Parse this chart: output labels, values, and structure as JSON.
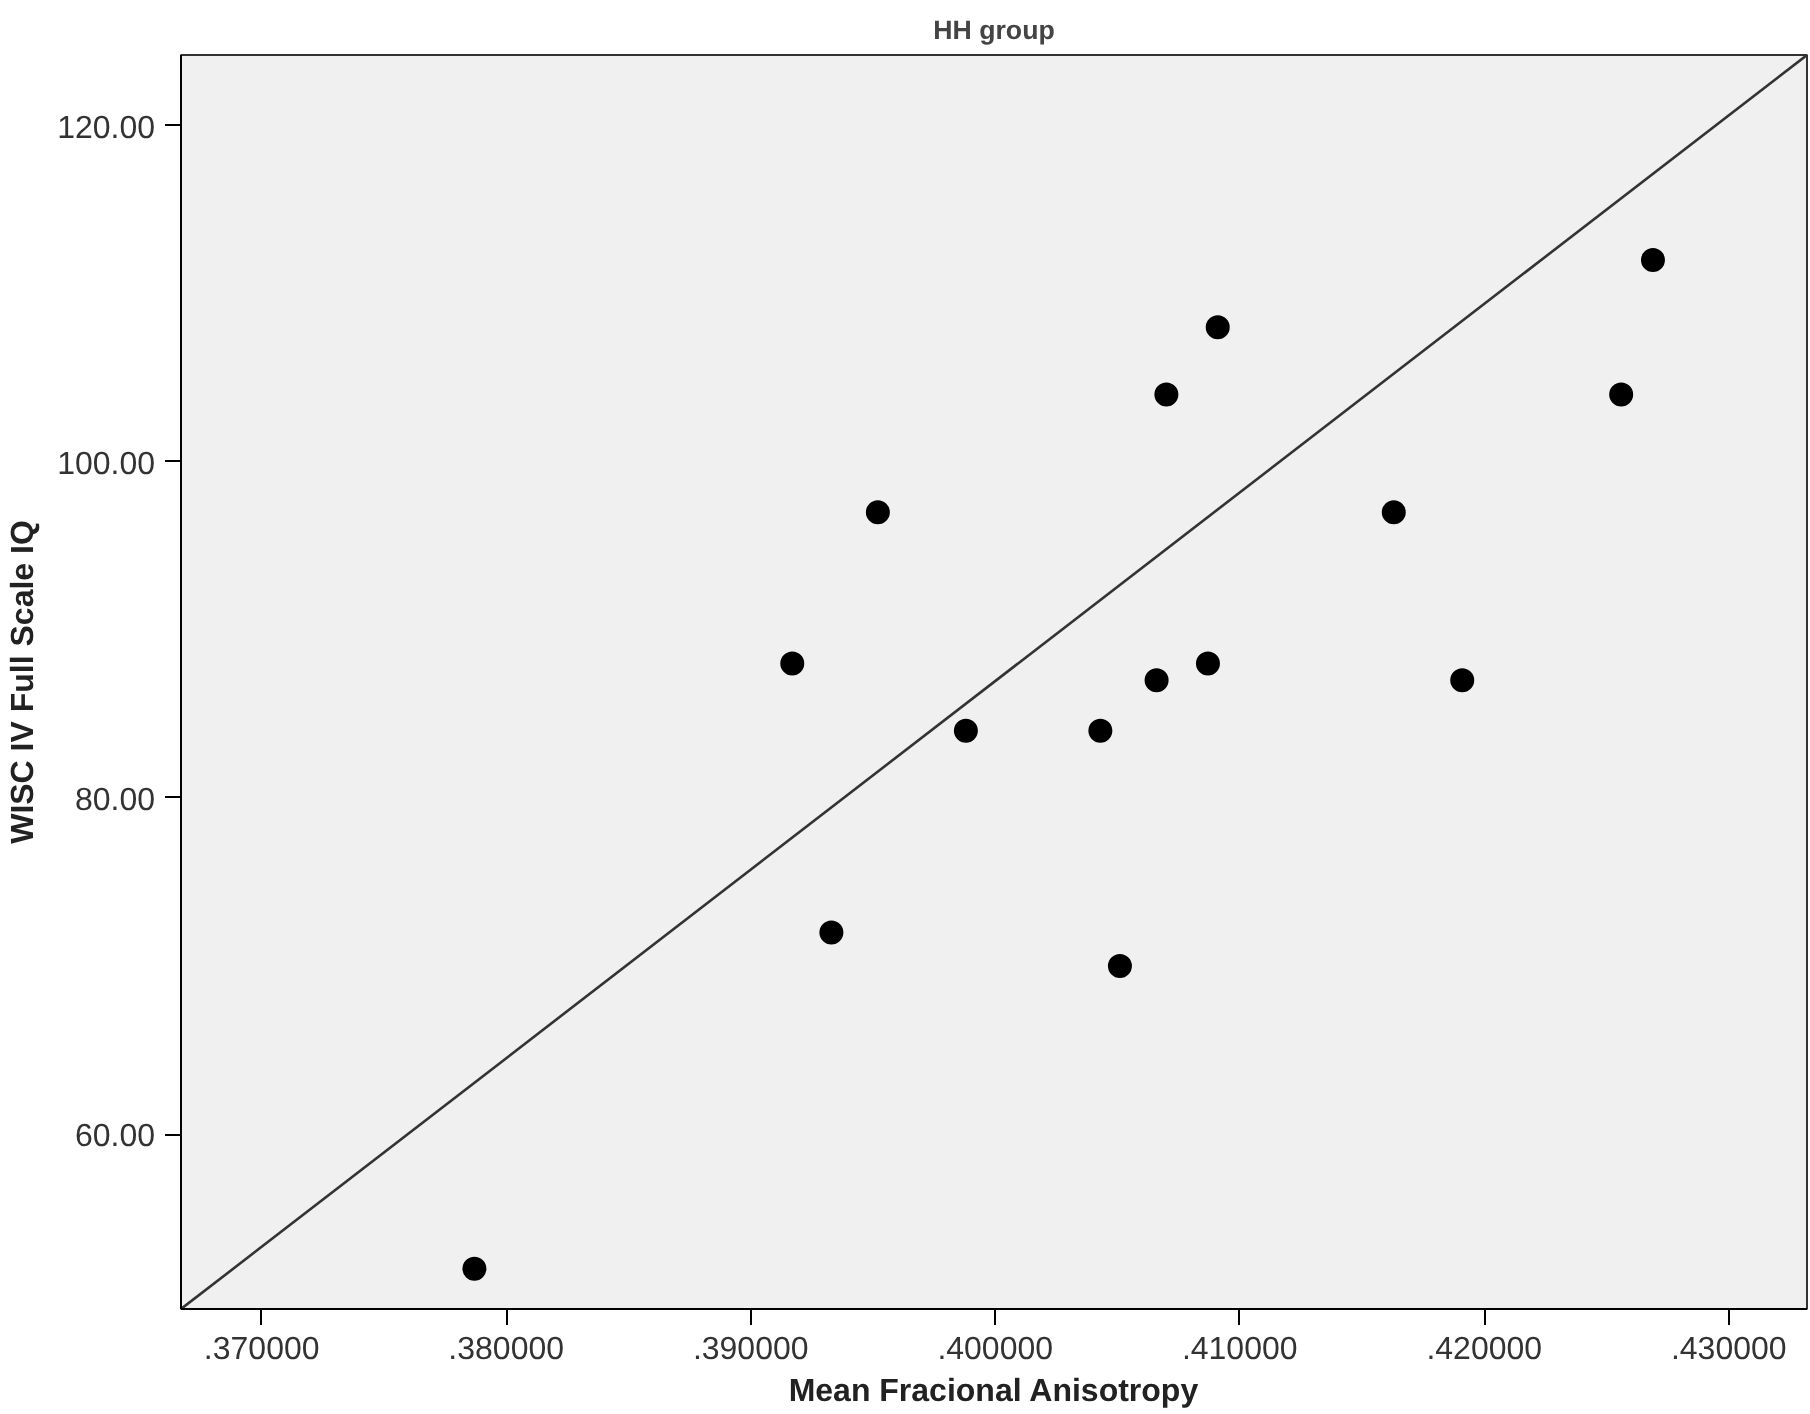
{
  "chart_data": {
    "type": "scatter",
    "title": "HH group",
    "xlabel": "Mean Fracional Anisotropy",
    "ylabel": "WISC IV Full Scale IQ",
    "xlim": [
      0.3667,
      0.4332
    ],
    "ylim": [
      49.6,
      124.2
    ],
    "xticks": [
      {
        "value": 0.37,
        "label": ".370000"
      },
      {
        "value": 0.38,
        "label": ".380000"
      },
      {
        "value": 0.39,
        "label": ".390000"
      },
      {
        "value": 0.4,
        "label": ".400000"
      },
      {
        "value": 0.41,
        "label": ".410000"
      },
      {
        "value": 0.42,
        "label": ".420000"
      },
      {
        "value": 0.43,
        "label": ".430000"
      }
    ],
    "yticks": [
      {
        "value": 60,
        "label": "60.00"
      },
      {
        "value": 80,
        "label": "80.00"
      },
      {
        "value": 100,
        "label": "100.00"
      },
      {
        "value": 120,
        "label": "120.00"
      }
    ],
    "grid": false,
    "series": [
      {
        "color": "#000000",
        "marker": "circle",
        "x": [
          0.3787,
          0.3917,
          0.3933,
          0.3952,
          0.3988,
          0.4043,
          0.4051,
          0.4066,
          0.407,
          0.4087,
          0.4091,
          0.4163,
          0.4191,
          0.4256,
          0.4269
        ],
        "values": [
          52,
          88,
          72,
          97,
          84,
          84,
          70,
          87,
          104,
          88,
          108,
          97,
          87,
          104,
          112
        ]
      },
      {
        "type": "line",
        "color": "#333333",
        "line_style": "solid",
        "x": [
          0.3667,
          0.4332
        ],
        "values": [
          49.6,
          124.2
        ]
      }
    ]
  }
}
